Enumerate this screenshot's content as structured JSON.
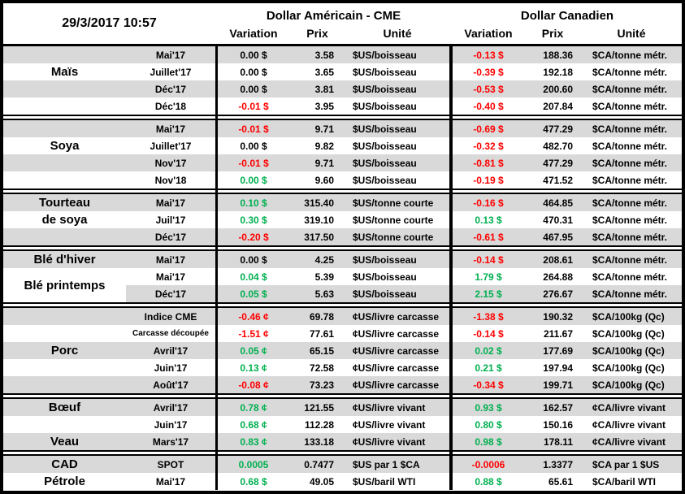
{
  "header": {
    "datetime": "29/3/2017 10:57",
    "us_group_title": "Dollar Américain - CME",
    "ca_group_title": "Dollar Canadien",
    "columns": {
      "variation": "Variation",
      "prix": "Prix",
      "unite": "Unité"
    }
  },
  "colors": {
    "positive": "#00B050",
    "negative": "#FF0000",
    "neutral": "#000000",
    "row_band": "#D9D9D9",
    "border": "#000000"
  },
  "sections": [
    {
      "id": "mais",
      "labels": [
        {
          "row": 1,
          "span": 1,
          "text": "Maïs"
        }
      ],
      "rows": [
        {
          "contract": "Mai'17",
          "us_variation": "0.00 $",
          "us_trend": "neutral",
          "us_prix": "3.58",
          "us_unite": "$US/boisseau",
          "ca_variation": "-0.13 $",
          "ca_trend": "negative",
          "ca_prix": "188.36",
          "ca_unite": "$CA/tonne métr."
        },
        {
          "contract": "Juillet'17",
          "us_variation": "0.00 $",
          "us_trend": "neutral",
          "us_prix": "3.65",
          "us_unite": "$US/boisseau",
          "ca_variation": "-0.39 $",
          "ca_trend": "negative",
          "ca_prix": "192.18",
          "ca_unite": "$CA/tonne métr."
        },
        {
          "contract": "Déc'17",
          "us_variation": "0.00 $",
          "us_trend": "neutral",
          "us_prix": "3.81",
          "us_unite": "$US/boisseau",
          "ca_variation": "-0.53 $",
          "ca_trend": "negative",
          "ca_prix": "200.60",
          "ca_unite": "$CA/tonne métr."
        },
        {
          "contract": "Déc'18",
          "us_variation": "-0.01 $",
          "us_trend": "negative",
          "us_prix": "3.95",
          "us_unite": "$US/boisseau",
          "ca_variation": "-0.40 $",
          "ca_trend": "negative",
          "ca_prix": "207.84",
          "ca_unite": "$CA/tonne métr."
        }
      ]
    },
    {
      "id": "soya",
      "labels": [
        {
          "row": 1,
          "span": 1,
          "text": "Soya"
        }
      ],
      "rows": [
        {
          "contract": "Mai'17",
          "us_variation": "-0.01 $",
          "us_trend": "negative",
          "us_prix": "9.71",
          "us_unite": "$US/boisseau",
          "ca_variation": "-0.69 $",
          "ca_trend": "negative",
          "ca_prix": "477.29",
          "ca_unite": "$CA/tonne métr."
        },
        {
          "contract": "Juillet'17",
          "us_variation": "0.00 $",
          "us_trend": "neutral",
          "us_prix": "9.82",
          "us_unite": "$US/boisseau",
          "ca_variation": "-0.32 $",
          "ca_trend": "negative",
          "ca_prix": "482.70",
          "ca_unite": "$CA/tonne métr."
        },
        {
          "contract": "Nov'17",
          "us_variation": "-0.01 $",
          "us_trend": "negative",
          "us_prix": "9.71",
          "us_unite": "$US/boisseau",
          "ca_variation": "-0.81 $",
          "ca_trend": "negative",
          "ca_prix": "477.29",
          "ca_unite": "$CA/tonne métr."
        },
        {
          "contract": "Nov'18",
          "us_variation": "0.00 $",
          "us_trend": "positive",
          "us_prix": "9.60",
          "us_unite": "$US/boisseau",
          "ca_variation": "-0.19 $",
          "ca_trend": "negative",
          "ca_prix": "471.52",
          "ca_unite": "$CA/tonne métr."
        }
      ]
    },
    {
      "id": "tourteau-de-soya",
      "labels": [
        {
          "row": 0,
          "span": 1,
          "text": "Tourteau"
        },
        {
          "row": 1,
          "span": 1,
          "text": "de soya"
        }
      ],
      "rows": [
        {
          "contract": "Mai'17",
          "us_variation": "0.10 $",
          "us_trend": "positive",
          "us_prix": "315.40",
          "us_unite": "$US/tonne courte",
          "ca_variation": "-0.16 $",
          "ca_trend": "negative",
          "ca_prix": "464.85",
          "ca_unite": "$CA/tonne métr."
        },
        {
          "contract": "Juil'17",
          "us_variation": "0.30 $",
          "us_trend": "positive",
          "us_prix": "319.10",
          "us_unite": "$US/tonne courte",
          "ca_variation": "0.13 $",
          "ca_trend": "positive",
          "ca_prix": "470.31",
          "ca_unite": "$CA/tonne métr."
        },
        {
          "contract": "Déc'17",
          "us_variation": "-0.20 $",
          "us_trend": "negative",
          "us_prix": "317.50",
          "us_unite": "$US/tonne courte",
          "ca_variation": "-0.61 $",
          "ca_trend": "negative",
          "ca_prix": "467.95",
          "ca_unite": "$CA/tonne métr."
        }
      ]
    },
    {
      "id": "ble",
      "labels": [
        {
          "row": 0,
          "span": 1,
          "text": "Blé d'hiver"
        },
        {
          "row": 1,
          "span": 2,
          "text": "Blé printemps"
        }
      ],
      "rows": [
        {
          "contract": "Mai'17",
          "us_variation": "0.00 $",
          "us_trend": "neutral",
          "us_prix": "4.25",
          "us_unite": "$US/boisseau",
          "ca_variation": "-0.14 $",
          "ca_trend": "negative",
          "ca_prix": "208.61",
          "ca_unite": "$CA/tonne métr."
        },
        {
          "contract": "Mai'17",
          "us_variation": "0.04 $",
          "us_trend": "positive",
          "us_prix": "5.39",
          "us_unite": "$US/boisseau",
          "ca_variation": "1.79 $",
          "ca_trend": "positive",
          "ca_prix": "264.88",
          "ca_unite": "$CA/tonne métr."
        },
        {
          "contract": "Déc'17",
          "us_variation": "0.05 $",
          "us_trend": "positive",
          "us_prix": "5.63",
          "us_unite": "$US/boisseau",
          "ca_variation": "2.15 $",
          "ca_trend": "positive",
          "ca_prix": "276.67",
          "ca_unite": "$CA/tonne métr."
        }
      ]
    },
    {
      "id": "porc",
      "labels": [
        {
          "row": 2,
          "span": 1,
          "text": "Porc"
        }
      ],
      "rows": [
        {
          "contract": "Indice CME",
          "us_variation": "-0.46 ¢",
          "us_trend": "negative",
          "us_prix": "69.78",
          "us_unite": "¢US/livre carcasse",
          "ca_variation": "-1.38 $",
          "ca_trend": "negative",
          "ca_prix": "190.32",
          "ca_unite": "$CA/100kg (Qc)"
        },
        {
          "contract": "Carcasse découpée",
          "contract_small": true,
          "us_variation": "-1.51 ¢",
          "us_trend": "negative",
          "us_prix": "77.61",
          "us_unite": "¢US/livre carcasse",
          "ca_variation": "-0.14 $",
          "ca_trend": "negative",
          "ca_prix": "211.67",
          "ca_unite": "$CA/100kg (Qc)"
        },
        {
          "contract": "Avril'17",
          "us_variation": "0.05 ¢",
          "us_trend": "positive",
          "us_prix": "65.15",
          "us_unite": "¢US/livre carcasse",
          "ca_variation": "0.02 $",
          "ca_trend": "positive",
          "ca_prix": "177.69",
          "ca_unite": "$CA/100kg (Qc)"
        },
        {
          "contract": "Juin'17",
          "us_variation": "0.13 ¢",
          "us_trend": "positive",
          "us_prix": "72.58",
          "us_unite": "¢US/livre carcasse",
          "ca_variation": "0.21 $",
          "ca_trend": "positive",
          "ca_prix": "197.94",
          "ca_unite": "$CA/100kg (Qc)"
        },
        {
          "contract": "Août'17",
          "us_variation": "-0.08 ¢",
          "us_trend": "negative",
          "us_prix": "73.23",
          "us_unite": "¢US/livre carcasse",
          "ca_variation": "-0.34 $",
          "ca_trend": "negative",
          "ca_prix": "199.71",
          "ca_unite": "$CA/100kg (Qc)"
        }
      ]
    },
    {
      "id": "boeuf-veau",
      "labels": [
        {
          "row": 0,
          "span": 1,
          "text": "Bœuf"
        },
        {
          "row": 2,
          "span": 1,
          "text": "Veau"
        }
      ],
      "rows": [
        {
          "contract": "Avril'17",
          "us_variation": "0.78 ¢",
          "us_trend": "positive",
          "us_prix": "121.55",
          "us_unite": "¢US/livre vivant",
          "ca_variation": "0.93 $",
          "ca_trend": "positive",
          "ca_prix": "162.57",
          "ca_unite": "¢CA/livre vivant"
        },
        {
          "contract": "Juin'17",
          "us_variation": "0.68 ¢",
          "us_trend": "positive",
          "us_prix": "112.28",
          "us_unite": "¢US/livre vivant",
          "ca_variation": "0.80 $",
          "ca_trend": "positive",
          "ca_prix": "150.16",
          "ca_unite": "¢CA/livre vivant"
        },
        {
          "contract": "Mars'17",
          "us_variation": "0.83 ¢",
          "us_trend": "positive",
          "us_prix": "133.18",
          "us_unite": "¢US/livre vivant",
          "ca_variation": "0.98 $",
          "ca_trend": "positive",
          "ca_prix": "178.11",
          "ca_unite": "¢CA/livre vivant"
        }
      ]
    },
    {
      "id": "cad-petrole",
      "labels": [
        {
          "row": 0,
          "span": 1,
          "text": "CAD"
        },
        {
          "row": 1,
          "span": 1,
          "text": "Pétrole"
        }
      ],
      "rows": [
        {
          "contract": "SPOT",
          "us_variation": "0.0005",
          "us_trend": "positive",
          "us_prix": "0.7477",
          "us_unite": "$US par 1 $CA",
          "ca_variation": "-0.0006",
          "ca_trend": "negative",
          "ca_prix": "1.3377",
          "ca_unite": "$CA par 1 $US"
        },
        {
          "contract": "Mai'17",
          "us_variation": "0.68 $",
          "us_trend": "positive",
          "us_prix": "49.05",
          "us_unite": "$US/baril WTI",
          "ca_variation": "0.88 $",
          "ca_trend": "positive",
          "ca_prix": "65.61",
          "ca_unite": "$CA/baril WTI"
        }
      ]
    }
  ]
}
